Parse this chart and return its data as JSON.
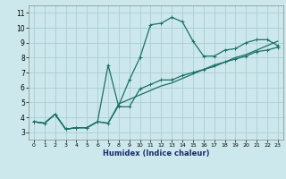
{
  "xlabel": "Humidex (Indice chaleur)",
  "xlim": [
    -0.5,
    23.5
  ],
  "ylim": [
    2.5,
    11.5
  ],
  "xticks": [
    0,
    1,
    2,
    3,
    4,
    5,
    6,
    7,
    8,
    9,
    10,
    11,
    12,
    13,
    14,
    15,
    16,
    17,
    18,
    19,
    20,
    21,
    22,
    23
  ],
  "yticks": [
    3,
    4,
    5,
    6,
    7,
    8,
    9,
    10,
    11
  ],
  "bg_color": "#cce8ec",
  "grid_color": "#aacdd3",
  "line_color": "#1a7068",
  "curve1_x": [
    0,
    1,
    2,
    3,
    4,
    5,
    6,
    7,
    8,
    9,
    10,
    11,
    12,
    13,
    14,
    15,
    16,
    17,
    18,
    19,
    20,
    21,
    22,
    23
  ],
  "curve1_y": [
    3.7,
    3.6,
    4.2,
    3.2,
    3.3,
    3.3,
    3.7,
    3.6,
    4.8,
    6.5,
    8.0,
    10.2,
    10.3,
    10.7,
    10.4,
    9.1,
    8.1,
    8.1,
    8.5,
    8.6,
    9.0,
    9.2,
    9.2,
    8.8
  ],
  "curve2_x": [
    0,
    1,
    2,
    3,
    4,
    5,
    6,
    7,
    8,
    9,
    10,
    11,
    12,
    13,
    14,
    15,
    16,
    17,
    18,
    19,
    20,
    21,
    22,
    23
  ],
  "curve2_y": [
    3.7,
    3.6,
    4.2,
    3.2,
    3.3,
    3.3,
    3.7,
    7.5,
    4.7,
    4.7,
    5.9,
    6.2,
    6.5,
    6.5,
    6.8,
    7.0,
    7.2,
    7.5,
    7.7,
    7.9,
    8.1,
    8.4,
    8.5,
    8.7
  ],
  "curve3_x": [
    0,
    1,
    2,
    3,
    4,
    5,
    6,
    7,
    8,
    9,
    10,
    11,
    12,
    13,
    14,
    15,
    16,
    17,
    18,
    19,
    20,
    21,
    22,
    23
  ],
  "curve3_y": [
    3.7,
    3.6,
    4.2,
    3.2,
    3.3,
    3.3,
    3.7,
    3.6,
    4.9,
    5.2,
    5.5,
    5.8,
    6.1,
    6.3,
    6.6,
    6.9,
    7.2,
    7.4,
    7.7,
    8.0,
    8.2,
    8.5,
    8.8,
    9.1
  ]
}
